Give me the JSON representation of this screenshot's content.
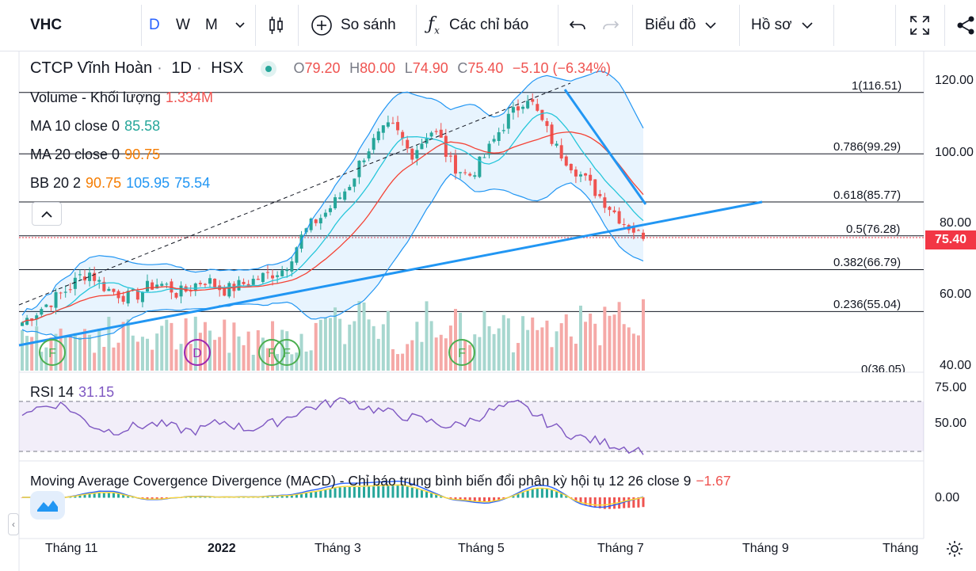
{
  "toolbar": {
    "symbol": "VHC",
    "interval_d": "D",
    "interval_w": "W",
    "interval_m": "M",
    "compare_label": "So sánh",
    "indicators_label": "Các chỉ báo",
    "chart_type_label": "Biểu đồ",
    "profile_label": "Hồ sơ"
  },
  "legend": {
    "name": "CTCP Vĩnh Hoàn",
    "interval": "1D",
    "exchange": "HSX",
    "open_label": "O",
    "open": "79.20",
    "high_label": "H",
    "high": "80.00",
    "low_label": "L",
    "low": "74.90",
    "close_label": "C",
    "close": "75.40",
    "change": "−5.10 (−6.34%)",
    "volume_label": "Volume - Khối lượng",
    "volume": "1.334M",
    "ma10_label": "MA 10 close 0",
    "ma10": "85.58",
    "ma20_label": "MA 20 close 0",
    "ma20": "90.75",
    "bb_label": "BB 20 2",
    "bb_mid": "90.75",
    "bb_up": "105.95",
    "bb_low": "75.54"
  },
  "fib_levels": [
    "1(116.51)",
    "0.786(99.29)",
    "0.618(85.77)",
    "0.5(76.28)",
    "0.382(66.79)",
    "0.236(55.04)",
    "0(36.05)"
  ],
  "price_axis": [
    "120.00",
    "100.00",
    "80.00",
    "60.00",
    "40.00"
  ],
  "last_price": "75.40",
  "rsi": {
    "label": "RSI 14",
    "value": "31.15",
    "axis": [
      "75.00",
      "50.00"
    ]
  },
  "macd": {
    "label": "Moving Average Covergence Divergence (MACD) - Chỉ báo trung bình biến đổi phân kỳ hội tụ 12 26 close 9",
    "value": "−1.67",
    "axis": "0.00"
  },
  "time_axis": [
    "Tháng 11",
    "2022",
    "Tháng 3",
    "Tháng 5",
    "Tháng 7",
    "Tháng 9",
    "Tháng"
  ],
  "event_markers": [
    "F",
    "D",
    "F",
    "F",
    "F"
  ],
  "colors": {
    "up": "#26a69a",
    "down": "#ef5350",
    "accent": "#2196f3",
    "bb": "#2196f3",
    "ma10": "#26c6da",
    "ma20": "#f44336",
    "rsi": "#7e57c2",
    "badge": "#f23645"
  },
  "chart_data": {
    "type": "candlestick",
    "price_series_close": [
      52,
      54,
      56,
      58,
      60,
      62,
      65,
      66,
      63,
      61,
      60,
      59,
      60,
      62,
      63,
      62,
      60,
      61,
      63,
      64,
      62,
      61,
      62,
      63,
      64,
      65,
      66,
      67,
      72,
      77,
      80,
      82,
      85,
      88,
      92,
      98,
      102,
      105,
      107,
      104,
      99,
      102,
      106,
      104,
      97,
      95,
      93,
      96,
      100,
      105,
      109,
      112,
      116,
      111,
      106,
      101,
      98,
      95,
      92,
      89,
      86,
      83,
      80,
      78,
      75.4
    ],
    "rsi_series": [
      62,
      64,
      66,
      68,
      66,
      58,
      52,
      48,
      46,
      48,
      50,
      51,
      52,
      50,
      48,
      46,
      48,
      52,
      54,
      50,
      48,
      50,
      52,
      55,
      60,
      64,
      66,
      68,
      70,
      72,
      66,
      64,
      62,
      60,
      58,
      56,
      54,
      52,
      50,
      52,
      56,
      60,
      64,
      66,
      68,
      62,
      56,
      50,
      46,
      42,
      40,
      38,
      36,
      34,
      32,
      31.15
    ]
  }
}
